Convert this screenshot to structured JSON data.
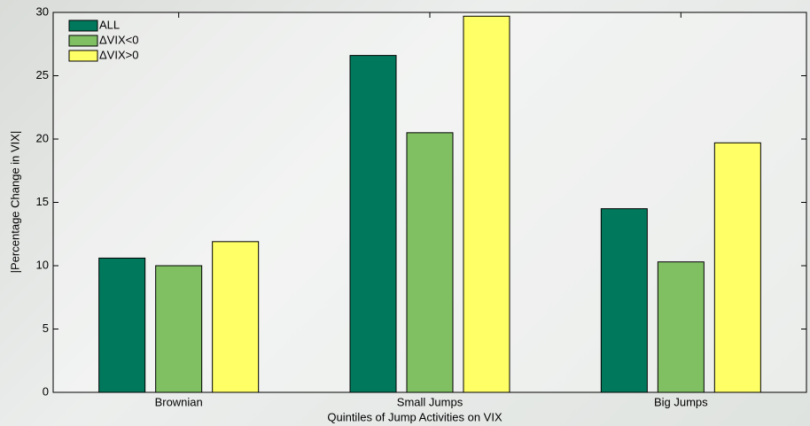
{
  "chart_data": {
    "type": "bar",
    "x_label": "Quintiles of Jump Activities on VIX",
    "y_label": "|Percentage Change in VIX|",
    "categories": [
      "Brownian",
      "Small Jumps",
      "Big Jumps"
    ],
    "series": [
      {
        "name": "ALL",
        "color": "#00785c",
        "values": [
          10.6,
          26.6,
          14.5
        ]
      },
      {
        "name": "ΔVIX<0",
        "color": "#80c063",
        "values": [
          10.0,
          20.5,
          10.3
        ]
      },
      {
        "name": "ΔVIX>0",
        "color": "#ffff66",
        "values": [
          11.9,
          29.7,
          19.7
        ]
      }
    ],
    "ylim": [
      0,
      30
    ],
    "yticks": [
      0,
      5,
      10,
      15,
      20,
      25,
      30
    ],
    "legend": "top-left"
  }
}
